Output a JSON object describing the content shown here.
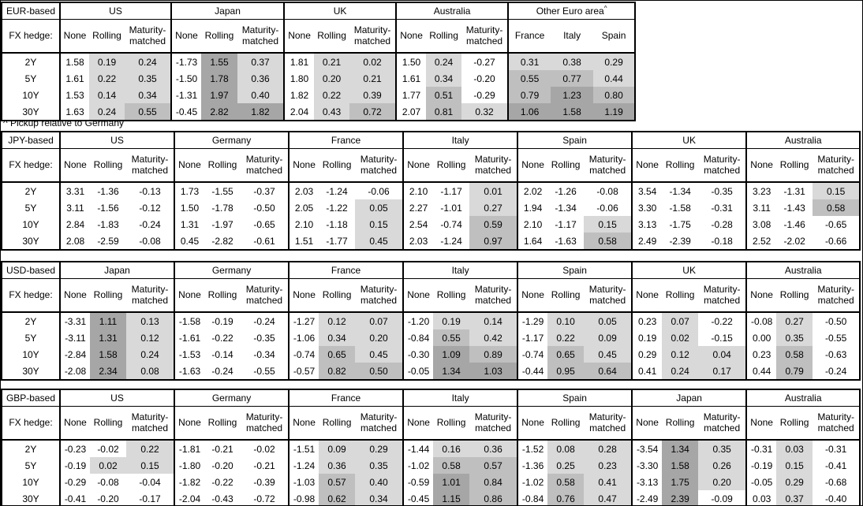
{
  "footnote": "^ Pickup relative to Germany",
  "colors": {
    "background": "#ffffff",
    "border": "#000000",
    "cell_none": "#ffffff",
    "cell_light": "#d9d9d9",
    "cell_medium": "#bfbfbf",
    "cell_dark": "#a6a6a6"
  },
  "shade_thresholds": {
    "light_min": 0,
    "medium_min": 0.5,
    "dark_min": 1.0
  },
  "chart_data": {
    "type": "table",
    "fx_hedge_label": "FX hedge:",
    "tenors": [
      "2Y",
      "5Y",
      "10Y",
      "30Y"
    ],
    "default_columns": [
      "None",
      "Rolling",
      "Maturity-matched"
    ],
    "shading_rule": "None columns unshaded; hedged/pickup columns shaded light if 0<v<0.5, medium if 0.5<=v<1.0, dark if v>=1.0, white if v<=0",
    "sections": [
      {
        "label": "EUR-based",
        "groups": [
          {
            "name": "US",
            "values": [
              [
                "1.58",
                "0.19",
                "0.24"
              ],
              [
                "1.61",
                "0.22",
                "0.35"
              ],
              [
                "1.53",
                "0.14",
                "0.34"
              ],
              [
                "1.63",
                "0.24",
                "0.55"
              ]
            ]
          },
          {
            "name": "Japan",
            "values": [
              [
                "-1.73",
                "1.55",
                "0.37"
              ],
              [
                "-1.50",
                "1.78",
                "0.36"
              ],
              [
                "-1.31",
                "1.97",
                "0.40"
              ],
              [
                "-0.45",
                "2.82",
                "1.82"
              ]
            ]
          },
          {
            "name": "UK",
            "values": [
              [
                "1.81",
                "0.21",
                "0.02"
              ],
              [
                "1.80",
                "0.20",
                "0.21"
              ],
              [
                "1.82",
                "0.22",
                "0.39"
              ],
              [
                "2.04",
                "0.43",
                "0.72"
              ]
            ]
          },
          {
            "name": "Australia",
            "values": [
              [
                "1.50",
                "0.24",
                "-0.27"
              ],
              [
                "1.61",
                "0.34",
                "-0.20"
              ],
              [
                "1.77",
                "0.51",
                "-0.29"
              ],
              [
                "2.07",
                "0.81",
                "0.32"
              ]
            ]
          },
          {
            "name": "Other Euro area",
            "footnote_marker": "^",
            "columns": [
              "France",
              "Italy",
              "Spain"
            ],
            "shade_all_columns": true,
            "values": [
              [
                "0.31",
                "0.38",
                "0.29"
              ],
              [
                "0.55",
                "0.77",
                "0.44"
              ],
              [
                "0.79",
                "1.23",
                "0.80"
              ],
              [
                "1.06",
                "1.58",
                "1.19"
              ]
            ]
          }
        ]
      },
      {
        "label": "JPY-based",
        "groups": [
          {
            "name": "US",
            "values": [
              [
                "3.31",
                "-1.36",
                "-0.13"
              ],
              [
                "3.11",
                "-1.56",
                "-0.12"
              ],
              [
                "2.84",
                "-1.83",
                "-0.24"
              ],
              [
                "2.08",
                "-2.59",
                "-0.08"
              ]
            ]
          },
          {
            "name": "Germany",
            "values": [
              [
                "1.73",
                "-1.55",
                "-0.37"
              ],
              [
                "1.50",
                "-1.78",
                "-0.50"
              ],
              [
                "1.31",
                "-1.97",
                "-0.65"
              ],
              [
                "0.45",
                "-2.82",
                "-0.61"
              ]
            ]
          },
          {
            "name": "France",
            "values": [
              [
                "2.03",
                "-1.24",
                "-0.06"
              ],
              [
                "2.05",
                "-1.22",
                "0.05"
              ],
              [
                "2.10",
                "-1.18",
                "0.15"
              ],
              [
                "1.51",
                "-1.77",
                "0.45"
              ]
            ]
          },
          {
            "name": "Italy",
            "values": [
              [
                "2.10",
                "-1.17",
                "0.01"
              ],
              [
                "2.27",
                "-1.01",
                "0.27"
              ],
              [
                "2.54",
                "-0.74",
                "0.59"
              ],
              [
                "2.03",
                "-1.24",
                "0.97"
              ]
            ]
          },
          {
            "name": "Spain",
            "values": [
              [
                "2.02",
                "-1.26",
                "-0.08"
              ],
              [
                "1.94",
                "-1.34",
                "-0.06"
              ],
              [
                "2.10",
                "-1.17",
                "0.15"
              ],
              [
                "1.64",
                "-1.63",
                "0.58"
              ]
            ]
          },
          {
            "name": "UK",
            "values": [
              [
                "3.54",
                "-1.34",
                "-0.35"
              ],
              [
                "3.30",
                "-1.58",
                "-0.31"
              ],
              [
                "3.13",
                "-1.75",
                "-0.28"
              ],
              [
                "2.49",
                "-2.39",
                "-0.18"
              ]
            ]
          },
          {
            "name": "Australia",
            "values": [
              [
                "3.23",
                "-1.31",
                "0.15"
              ],
              [
                "3.11",
                "-1.43",
                "0.58"
              ],
              [
                "3.08",
                "-1.46",
                "-0.65"
              ],
              [
                "2.52",
                "-2.02",
                "-0.66"
              ]
            ]
          }
        ]
      },
      {
        "label": "USD-based",
        "groups": [
          {
            "name": "Japan",
            "values": [
              [
                "-3.31",
                "1.11",
                "0.13"
              ],
              [
                "-3.11",
                "1.31",
                "0.12"
              ],
              [
                "-2.84",
                "1.58",
                "0.24"
              ],
              [
                "-2.08",
                "2.34",
                "0.08"
              ]
            ]
          },
          {
            "name": "Germany",
            "values": [
              [
                "-1.58",
                "-0.19",
                "-0.24"
              ],
              [
                "-1.61",
                "-0.22",
                "-0.35"
              ],
              [
                "-1.53",
                "-0.14",
                "-0.34"
              ],
              [
                "-1.63",
                "-0.24",
                "-0.55"
              ]
            ]
          },
          {
            "name": "France",
            "values": [
              [
                "-1.27",
                "0.12",
                "0.07"
              ],
              [
                "-1.06",
                "0.34",
                "0.20"
              ],
              [
                "-0.74",
                "0.65",
                "0.45"
              ],
              [
                "-0.57",
                "0.82",
                "0.50"
              ]
            ]
          },
          {
            "name": "Italy",
            "values": [
              [
                "-1.20",
                "0.19",
                "0.14"
              ],
              [
                "-0.84",
                "0.55",
                "0.42"
              ],
              [
                "-0.30",
                "1.09",
                "0.89"
              ],
              [
                "-0.05",
                "1.34",
                "1.03"
              ]
            ]
          },
          {
            "name": "Spain",
            "values": [
              [
                "-1.29",
                "0.10",
                "0.05"
              ],
              [
                "-1.17",
                "0.22",
                "0.09"
              ],
              [
                "-0.74",
                "0.65",
                "0.45"
              ],
              [
                "-0.44",
                "0.95",
                "0.64"
              ]
            ]
          },
          {
            "name": "UK",
            "values": [
              [
                "0.23",
                "0.07",
                "-0.22"
              ],
              [
                "0.19",
                "0.02",
                "-0.15"
              ],
              [
                "0.29",
                "0.12",
                "0.04"
              ],
              [
                "0.41",
                "0.24",
                "0.17"
              ]
            ]
          },
          {
            "name": "Australia",
            "values": [
              [
                "-0.08",
                "0.27",
                "-0.50"
              ],
              [
                "0.00",
                "0.35",
                "-0.55"
              ],
              [
                "0.23",
                "0.58",
                "-0.63"
              ],
              [
                "0.44",
                "0.79",
                "-0.24"
              ]
            ]
          }
        ]
      },
      {
        "label": "GBP-based",
        "groups": [
          {
            "name": "US",
            "values": [
              [
                "-0.23",
                "-0.02",
                "0.22"
              ],
              [
                "-0.19",
                "0.02",
                "0.15"
              ],
              [
                "-0.29",
                "-0.08",
                "-0.04"
              ],
              [
                "-0.41",
                "-0.20",
                "-0.17"
              ]
            ]
          },
          {
            "name": "Germany",
            "values": [
              [
                "-1.81",
                "-0.21",
                "-0.02"
              ],
              [
                "-1.80",
                "-0.20",
                "-0.21"
              ],
              [
                "-1.82",
                "-0.22",
                "-0.39"
              ],
              [
                "-2.04",
                "-0.43",
                "-0.72"
              ]
            ]
          },
          {
            "name": "France",
            "values": [
              [
                "-1.51",
                "0.09",
                "0.29"
              ],
              [
                "-1.24",
                "0.36",
                "0.35"
              ],
              [
                "-1.03",
                "0.57",
                "0.40"
              ],
              [
                "-0.98",
                "0.62",
                "0.34"
              ]
            ]
          },
          {
            "name": "Italy",
            "values": [
              [
                "-1.44",
                "0.16",
                "0.36"
              ],
              [
                "-1.02",
                "0.58",
                "0.57"
              ],
              [
                "-0.59",
                "1.01",
                "0.84"
              ],
              [
                "-0.45",
                "1.15",
                "0.86"
              ]
            ]
          },
          {
            "name": "Spain",
            "values": [
              [
                "-1.52",
                "0.08",
                "0.28"
              ],
              [
                "-1.36",
                "0.25",
                "0.23"
              ],
              [
                "-1.02",
                "0.58",
                "0.41"
              ],
              [
                "-0.84",
                "0.76",
                "0.47"
              ]
            ]
          },
          {
            "name": "Japan",
            "values": [
              [
                "-3.54",
                "1.34",
                "0.35"
              ],
              [
                "-3.30",
                "1.58",
                "0.26"
              ],
              [
                "-3.13",
                "1.75",
                "0.20"
              ],
              [
                "-2.49",
                "2.39",
                "-0.09"
              ]
            ]
          },
          {
            "name": "Australia",
            "values": [
              [
                "-0.31",
                "0.03",
                "-0.31"
              ],
              [
                "-0.19",
                "0.15",
                "-0.41"
              ],
              [
                "-0.05",
                "0.29",
                "-0.68"
              ],
              [
                "0.03",
                "0.37",
                "-0.40"
              ]
            ]
          }
        ]
      }
    ]
  }
}
